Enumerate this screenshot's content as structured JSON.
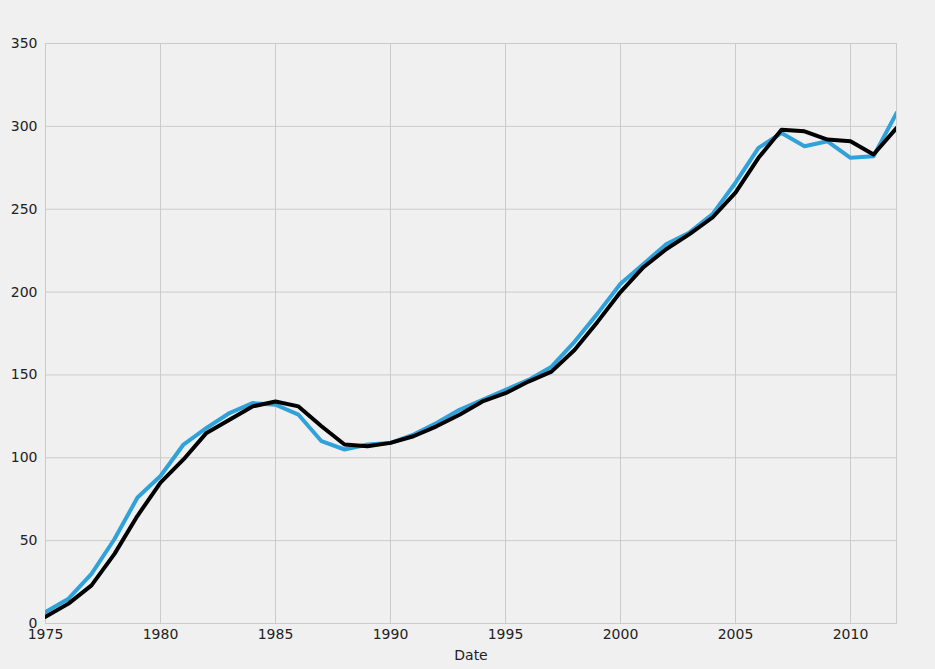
{
  "chart_data": {
    "type": "line",
    "x_label": "Date",
    "x": [
      1975,
      1976,
      1977,
      1978,
      1979,
      1980,
      1981,
      1982,
      1983,
      1984,
      1985,
      1986,
      1987,
      1988,
      1989,
      1990,
      1991,
      1992,
      1993,
      1994,
      1995,
      1996,
      1997,
      1998,
      1999,
      2000,
      2001,
      2002,
      2003,
      2004,
      2005,
      2006,
      2007,
      2008,
      2009,
      2010,
      2011,
      2012
    ],
    "series": [
      {
        "color": "#30a2da",
        "values": [
          7,
          15,
          30,
          51,
          76,
          89,
          108,
          118,
          127,
          133,
          132,
          126,
          110,
          105,
          108,
          109,
          114,
          121,
          129,
          135,
          141,
          147,
          155,
          170,
          187,
          205,
          217,
          229,
          236,
          247,
          266,
          287,
          296,
          288,
          291,
          281,
          282,
          308
        ]
      },
      {
        "color": "#000000",
        "values": [
          4,
          12,
          23,
          42,
          65,
          85,
          99,
          115,
          123,
          131,
          134,
          131,
          119,
          108,
          107,
          109,
          113,
          119,
          126,
          134,
          139,
          146,
          152,
          165,
          182,
          200,
          215,
          226,
          235,
          245,
          260,
          281,
          298,
          297,
          292,
          291,
          283,
          299
        ]
      }
    ],
    "xlim": [
      1975,
      2012
    ],
    "xticks": [
      1975,
      1980,
      1985,
      1990,
      1995,
      2000,
      2005,
      2010
    ],
    "ylim": [
      0,
      350
    ],
    "yticks": [
      0,
      50,
      100,
      150,
      200,
      250,
      300,
      350
    ],
    "grid": true
  }
}
